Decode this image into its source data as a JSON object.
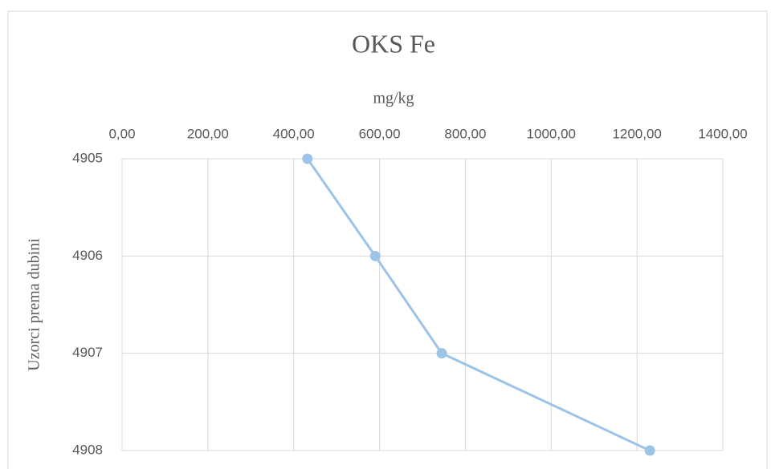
{
  "chart_data": {
    "type": "line",
    "title": "OKS Fe",
    "x_label": "mg/kg",
    "y_label": "Uzorci prema dubini",
    "categories": [
      "4905",
      "4906",
      "4907",
      "4908"
    ],
    "series": [
      {
        "name": "OKS Fe",
        "color": "#9dc3e6",
        "values": [
          432,
          590,
          745,
          1230
        ]
      }
    ],
    "xlim": [
      0,
      1400
    ],
    "xticks": [
      {
        "value": 0,
        "label": "0,00"
      },
      {
        "value": 200,
        "label": "200,00"
      },
      {
        "value": 400,
        "label": "400,00"
      },
      {
        "value": 600,
        "label": "600,00"
      },
      {
        "value": 800,
        "label": "800,00"
      },
      {
        "value": 1000,
        "label": "1000,00"
      },
      {
        "value": 1200,
        "label": "1200,00"
      },
      {
        "value": 1400,
        "label": "1400,00"
      }
    ],
    "grid": true
  }
}
